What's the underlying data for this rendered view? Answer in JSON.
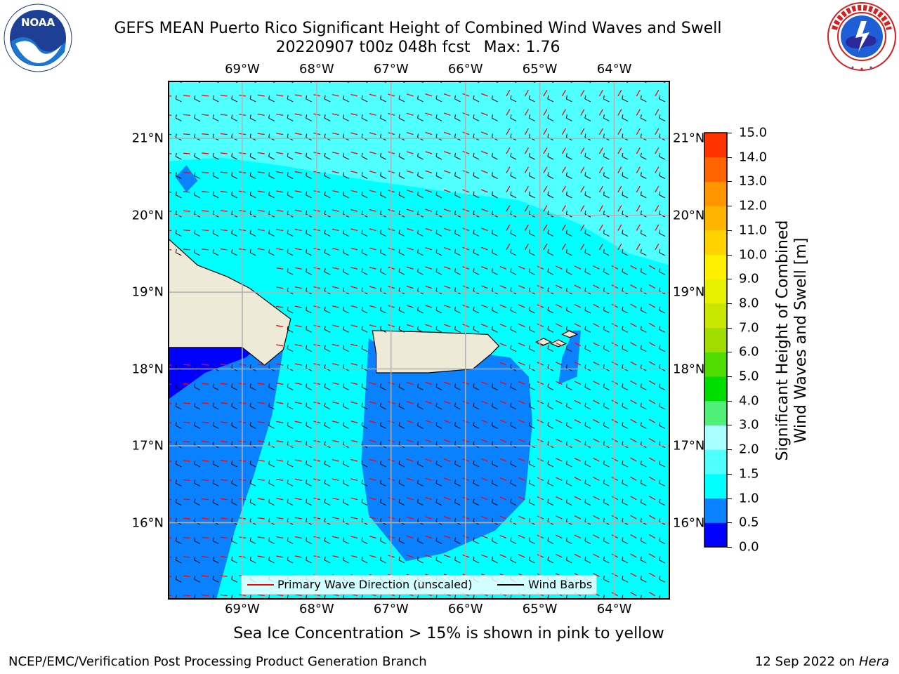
{
  "title": {
    "line1": "GEFS MEAN Puerto Rico Significant Height of Combined Wind Waves and Swell",
    "line2_date": "20220907 t00z 048h fcst",
    "line2_max": "Max: 1.76"
  },
  "logos": {
    "left": {
      "icon": "noaa-logo",
      "text": "NOAA",
      "ring_text": "NATIONAL OCEANIC AND ATMOSPHERIC ADMINISTRATION · U.S. DEPARTMENT OF COMMERCE"
    },
    "right": {
      "icon": "nws-logo",
      "ring_text": "NATIONAL WEATHER SERVICE"
    }
  },
  "map": {
    "lon_labels": [
      "69°W",
      "68°W",
      "67°W",
      "66°W",
      "65°W",
      "64°W"
    ],
    "lat_labels": [
      "21°N",
      "20°N",
      "19°N",
      "18°N",
      "17°N",
      "16°N"
    ],
    "lon_range": [
      -70,
      -63.25
    ],
    "lat_range": [
      15,
      21.75
    ],
    "grid": true,
    "colors": {
      "land": "#eeead8",
      "lt1": "#0000ff",
      "h0_5": "#0a82ff",
      "h1_0": "#00ffff",
      "h1_5": "#50ffff",
      "arrow": "#ff0000",
      "barb": "#000000"
    }
  },
  "legend": {
    "wave_label": "Primary Wave Direction (unscaled)",
    "barb_label": "Wind Barbs",
    "wave_color": "#ff0000",
    "barb_color": "#000000"
  },
  "colorbar": {
    "label_line1": "Significant Height of Combined",
    "label_line2": "Wind Waves and Swell [m]",
    "ticks": [
      "0.0",
      "0.5",
      "1.0",
      "1.5",
      "2.0",
      "3.0",
      "4.0",
      "5.0",
      "6.0",
      "7.0",
      "8.0",
      "9.0",
      "10.0",
      "11.0",
      "12.0",
      "13.0",
      "14.0",
      "15.0"
    ],
    "colors": [
      "#0000ff",
      "#0a82ff",
      "#00ffff",
      "#50ffff",
      "#aaffff",
      "#50f078",
      "#00dc00",
      "#50dc00",
      "#a0dc00",
      "#c8e600",
      "#e6f000",
      "#fff000",
      "#ffd200",
      "#ffb400",
      "#ff9600",
      "#ff6400",
      "#ff3200"
    ]
  },
  "caption": "Sea Ice Concentration > 15% is shown in pink to yellow",
  "footer": {
    "left": "NCEP/EMC/Verification Post Processing Product Generation Branch",
    "right_prefix": "12 Sep 2022 on",
    "right_host": "Hera"
  }
}
